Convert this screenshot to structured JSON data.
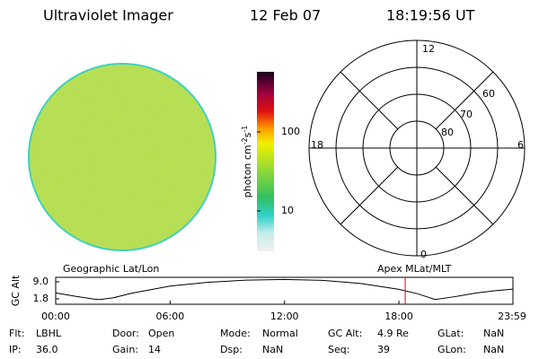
{
  "header": {
    "title": "Ultraviolet Imager",
    "date": "12 Feb 07",
    "time": "18:19:56 UT"
  },
  "colorbar": {
    "ticks": [
      "100",
      "10"
    ],
    "unit": {
      "base": "photon cm",
      "exp1": "-2",
      "mid": "s",
      "exp2": "-1"
    }
  },
  "polar": {
    "mlt_labels": [
      "12",
      "18",
      "6",
      "0"
    ],
    "lat_labels": [
      "60",
      "70",
      "80"
    ]
  },
  "gc_alt_plot": {
    "left_title": "Geographic Lat/Lon",
    "right_title": "Apex MLat/MLT",
    "ylabel": "GC Alt",
    "xlim": [
      0,
      23.98
    ],
    "ylim": [
      -0.5,
      10.9
    ],
    "xticks": [
      {
        "value": 0,
        "label": "00:00"
      },
      {
        "value": 6,
        "label": "06:00"
      },
      {
        "value": 12,
        "label": "12:00"
      },
      {
        "value": 18,
        "label": "18:00"
      },
      {
        "value": 23.98,
        "label": "23:59"
      }
    ],
    "yticks": [
      {
        "value": 9.0,
        "label": "9.0"
      },
      {
        "value": 1.8,
        "label": "1.8"
      }
    ],
    "x": [
      0,
      1,
      2,
      2.3,
      3,
      4,
      6,
      8,
      10,
      12,
      14,
      16,
      18,
      19,
      19.9,
      21,
      22,
      23,
      23.98
    ],
    "values": [
      4.3,
      2.9,
      1.7,
      1.5,
      2.2,
      4.2,
      7.2,
      8.8,
      9.7,
      10.0,
      9.6,
      8.3,
      5.8,
      3.9,
      1.5,
      2.8,
      4.2,
      5.2,
      5.9
    ],
    "marker_x": 18.33
  },
  "info": {
    "rows": [
      [
        [
          "Flt:",
          "LBHL"
        ],
        [
          "Door:",
          "Open"
        ],
        [
          "Mode:",
          "Normal"
        ],
        [
          "GC Alt:",
          "4.9 Re"
        ],
        [
          "GLat:",
          "NaN"
        ]
      ],
      [
        [
          "IP:",
          "36.0"
        ],
        [
          "Gain:",
          "14"
        ],
        [
          "Dsp:",
          "NaN"
        ],
        [
          "Seq:",
          "39"
        ],
        [
          "GLon:",
          "NaN"
        ]
      ]
    ]
  }
}
